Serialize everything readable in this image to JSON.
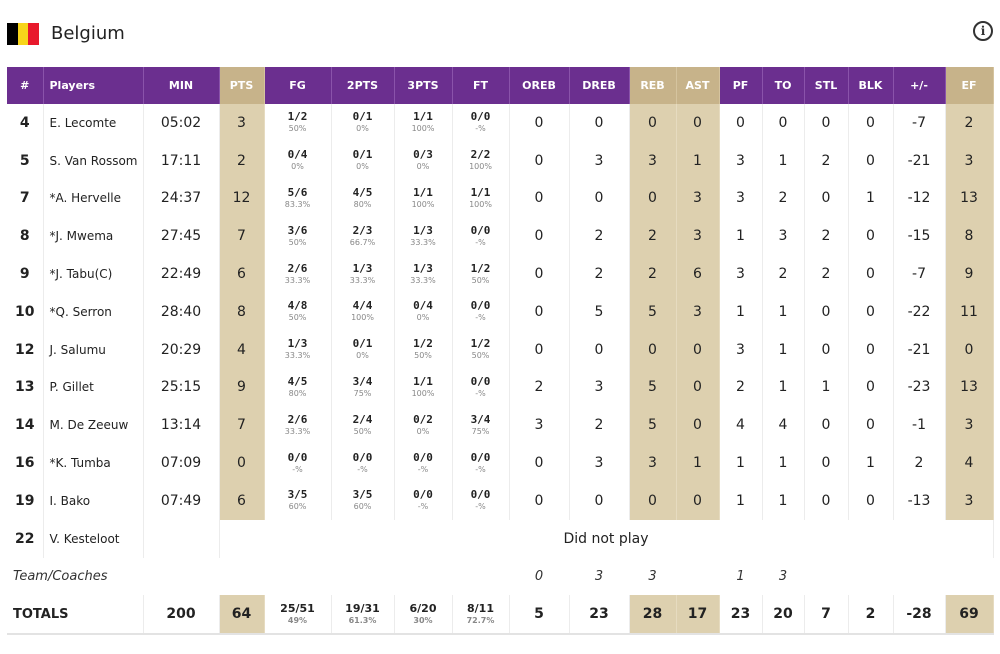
{
  "team": {
    "name": "Belgium",
    "flag_colors": [
      "#000000",
      "#f7d51a",
      "#e8192c"
    ],
    "info_icon": "info-icon"
  },
  "colors": {
    "header_purple": "#6b2f8f",
    "highlight_tan": "#c7b38a",
    "highlight_cell": "#ddd0af"
  },
  "columns": [
    "#",
    "Players",
    "MIN",
    "PTS",
    "FG",
    "2PTS",
    "3PTS",
    "FT",
    "OREB",
    "DREB",
    "REB",
    "AST",
    "PF",
    "TO",
    "STL",
    "BLK",
    "+/-",
    "EF"
  ],
  "players": [
    {
      "num": "4",
      "name": "E. Lecomte",
      "min": "05:02",
      "pts": "3",
      "fg": "1/2",
      "fg_pct": "50%",
      "p2": "0/1",
      "p2_pct": "0%",
      "p3": "1/1",
      "p3_pct": "100%",
      "ft": "0/0",
      "ft_pct": "-%",
      "oreb": "0",
      "dreb": "0",
      "reb": "0",
      "ast": "0",
      "pf": "0",
      "to": "0",
      "stl": "0",
      "blk": "0",
      "pm": "-7",
      "ef": "2"
    },
    {
      "num": "5",
      "name": "S. Van Rossom",
      "min": "17:11",
      "pts": "2",
      "fg": "0/4",
      "fg_pct": "0%",
      "p2": "0/1",
      "p2_pct": "0%",
      "p3": "0/3",
      "p3_pct": "0%",
      "ft": "2/2",
      "ft_pct": "100%",
      "oreb": "0",
      "dreb": "3",
      "reb": "3",
      "ast": "1",
      "pf": "3",
      "to": "1",
      "stl": "2",
      "blk": "0",
      "pm": "-21",
      "ef": "3"
    },
    {
      "num": "7",
      "name": "*A. Hervelle",
      "min": "24:37",
      "pts": "12",
      "fg": "5/6",
      "fg_pct": "83.3%",
      "p2": "4/5",
      "p2_pct": "80%",
      "p3": "1/1",
      "p3_pct": "100%",
      "ft": "1/1",
      "ft_pct": "100%",
      "oreb": "0",
      "dreb": "0",
      "reb": "0",
      "ast": "3",
      "pf": "3",
      "to": "2",
      "stl": "0",
      "blk": "1",
      "pm": "-12",
      "ef": "13"
    },
    {
      "num": "8",
      "name": "*J. Mwema",
      "min": "27:45",
      "pts": "7",
      "fg": "3/6",
      "fg_pct": "50%",
      "p2": "2/3",
      "p2_pct": "66.7%",
      "p3": "1/3",
      "p3_pct": "33.3%",
      "ft": "0/0",
      "ft_pct": "-%",
      "oreb": "0",
      "dreb": "2",
      "reb": "2",
      "ast": "3",
      "pf": "1",
      "to": "3",
      "stl": "2",
      "blk": "0",
      "pm": "-15",
      "ef": "8"
    },
    {
      "num": "9",
      "name": "*J. Tabu(C)",
      "min": "22:49",
      "pts": "6",
      "fg": "2/6",
      "fg_pct": "33.3%",
      "p2": "1/3",
      "p2_pct": "33.3%",
      "p3": "1/3",
      "p3_pct": "33.3%",
      "ft": "1/2",
      "ft_pct": "50%",
      "oreb": "0",
      "dreb": "2",
      "reb": "2",
      "ast": "6",
      "pf": "3",
      "to": "2",
      "stl": "2",
      "blk": "0",
      "pm": "-7",
      "ef": "9"
    },
    {
      "num": "10",
      "name": "*Q. Serron",
      "min": "28:40",
      "pts": "8",
      "fg": "4/8",
      "fg_pct": "50%",
      "p2": "4/4",
      "p2_pct": "100%",
      "p3": "0/4",
      "p3_pct": "0%",
      "ft": "0/0",
      "ft_pct": "-%",
      "oreb": "0",
      "dreb": "5",
      "reb": "5",
      "ast": "3",
      "pf": "1",
      "to": "1",
      "stl": "0",
      "blk": "0",
      "pm": "-22",
      "ef": "11"
    },
    {
      "num": "12",
      "name": "J. Salumu",
      "min": "20:29",
      "pts": "4",
      "fg": "1/3",
      "fg_pct": "33.3%",
      "p2": "0/1",
      "p2_pct": "0%",
      "p3": "1/2",
      "p3_pct": "50%",
      "ft": "1/2",
      "ft_pct": "50%",
      "oreb": "0",
      "dreb": "0",
      "reb": "0",
      "ast": "0",
      "pf": "3",
      "to": "1",
      "stl": "0",
      "blk": "0",
      "pm": "-21",
      "ef": "0"
    },
    {
      "num": "13",
      "name": "P. Gillet",
      "min": "25:15",
      "pts": "9",
      "fg": "4/5",
      "fg_pct": "80%",
      "p2": "3/4",
      "p2_pct": "75%",
      "p3": "1/1",
      "p3_pct": "100%",
      "ft": "0/0",
      "ft_pct": "-%",
      "oreb": "2",
      "dreb": "3",
      "reb": "5",
      "ast": "0",
      "pf": "2",
      "to": "1",
      "stl": "1",
      "blk": "0",
      "pm": "-23",
      "ef": "13"
    },
    {
      "num": "14",
      "name": "M. De Zeeuw",
      "min": "13:14",
      "pts": "7",
      "fg": "2/6",
      "fg_pct": "33.3%",
      "p2": "2/4",
      "p2_pct": "50%",
      "p3": "0/2",
      "p3_pct": "0%",
      "ft": "3/4",
      "ft_pct": "75%",
      "oreb": "3",
      "dreb": "2",
      "reb": "5",
      "ast": "0",
      "pf": "4",
      "to": "4",
      "stl": "0",
      "blk": "0",
      "pm": "-1",
      "ef": "3"
    },
    {
      "num": "16",
      "name": "*K. Tumba",
      "min": "07:09",
      "pts": "0",
      "fg": "0/0",
      "fg_pct": "-%",
      "p2": "0/0",
      "p2_pct": "-%",
      "p3": "0/0",
      "p3_pct": "-%",
      "ft": "0/0",
      "ft_pct": "-%",
      "oreb": "0",
      "dreb": "3",
      "reb": "3",
      "ast": "1",
      "pf": "1",
      "to": "1",
      "stl": "0",
      "blk": "1",
      "pm": "2",
      "ef": "4"
    },
    {
      "num": "19",
      "name": "I. Bako",
      "min": "07:49",
      "pts": "6",
      "fg": "3/5",
      "fg_pct": "60%",
      "p2": "3/5",
      "p2_pct": "60%",
      "p3": "0/0",
      "p3_pct": "-%",
      "ft": "0/0",
      "ft_pct": "-%",
      "oreb": "0",
      "dreb": "0",
      "reb": "0",
      "ast": "0",
      "pf": "1",
      "to": "1",
      "stl": "0",
      "blk": "0",
      "pm": "-13",
      "ef": "3"
    }
  ],
  "dnp": {
    "num": "22",
    "name": "V. Kesteloot",
    "text": "Did not play"
  },
  "coaches": {
    "label": "Team/Coaches",
    "oreb": "0",
    "dreb": "3",
    "reb": "3",
    "pf": "1",
    "to": "3"
  },
  "totals": {
    "label": "TOTALS",
    "min": "200",
    "pts": "64",
    "fg": "25/51",
    "fg_pct": "49%",
    "p2": "19/31",
    "p2_pct": "61.3%",
    "p3": "6/20",
    "p3_pct": "30%",
    "ft": "8/11",
    "ft_pct": "72.7%",
    "oreb": "5",
    "dreb": "23",
    "reb": "28",
    "ast": "17",
    "pf": "23",
    "to": "20",
    "stl": "7",
    "blk": "2",
    "pm": "-28",
    "ef": "69"
  }
}
